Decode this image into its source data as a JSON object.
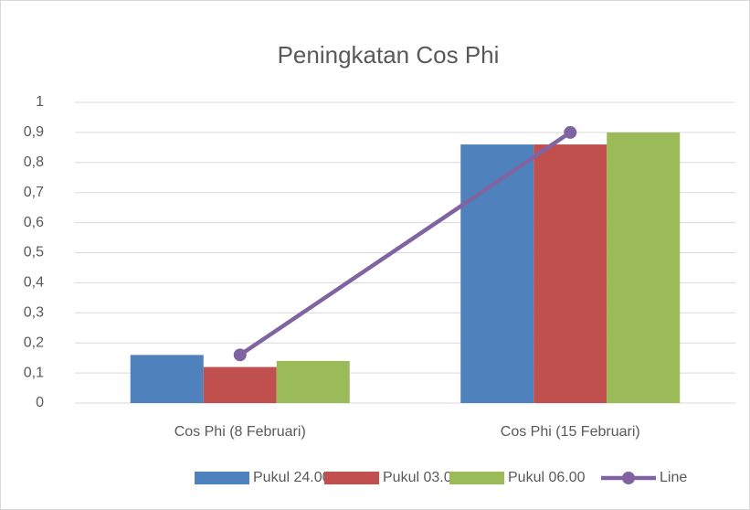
{
  "chart_data": {
    "type": "bar",
    "title": "Peningkatan Cos Phi",
    "categories": [
      "Cos Phi (8 Februari)",
      "Cos Phi (15 Februari)"
    ],
    "series": [
      {
        "name": "Pukul 24.00",
        "color": "#4f81bd",
        "values": [
          0.16,
          0.86
        ]
      },
      {
        "name": "Pukul 03.00",
        "color": "#c0504d",
        "values": [
          0.12,
          0.86
        ]
      },
      {
        "name": "Pukul 06.00",
        "color": "#9bbb59",
        "values": [
          0.14,
          0.9
        ]
      },
      {
        "name": "Line",
        "color": "#8064a2",
        "type": "line",
        "values": [
          0.16,
          0.9
        ]
      }
    ],
    "ylim": [
      0,
      1
    ],
    "yticks": [
      0,
      {
        "value": 0.1,
        "label": "0,1"
      },
      {
        "value": 0.2,
        "label": "0,2"
      },
      {
        "value": 0.3,
        "label": "0,3"
      },
      {
        "value": 0.4,
        "label": "0,4"
      },
      {
        "value": 0.5,
        "label": "0,5"
      },
      {
        "value": 0.6,
        "label": "0,6"
      },
      {
        "value": 0.7,
        "label": "0,7"
      },
      {
        "value": 0.8,
        "label": "0,8"
      },
      {
        "value": 0.9,
        "label": "0,9"
      },
      1
    ],
    "grid": true,
    "legend": "bottom"
  }
}
